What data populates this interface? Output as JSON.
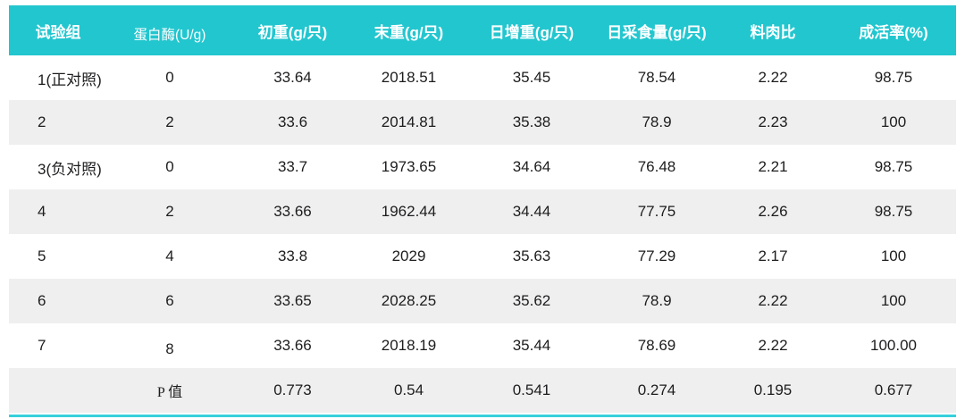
{
  "table": {
    "headers": [
      "试验组",
      "蛋白酶(U/g)",
      "初重(g/只)",
      "末重(g/只)",
      "日增重(g/只)",
      "日采食量(g/只)",
      "料肉比",
      "成活率(%)"
    ],
    "rows": [
      [
        "1(正对照)",
        "0",
        "33.64",
        "2018.51",
        "35.45",
        "78.54",
        "2.22",
        "98.75"
      ],
      [
        "2",
        "2",
        "33.6",
        "2014.81",
        "35.38",
        "78.9",
        "2.23",
        "100"
      ],
      [
        "3(负对照)",
        "0",
        "33.7",
        "1973.65",
        "34.64",
        "76.48",
        "2.21",
        "98.75"
      ],
      [
        "4",
        "2",
        "33.66",
        "1962.44",
        "34.44",
        "77.75",
        "2.26",
        "98.75"
      ],
      [
        "5",
        "4",
        "33.8",
        "2029",
        "35.63",
        "77.29",
        "2.17",
        "100"
      ],
      [
        "6",
        "6",
        "33.65",
        "2028.25",
        "35.62",
        "78.9",
        "2.22",
        "100"
      ],
      [
        "7",
        "8",
        "33.66",
        "2018.19",
        "35.44",
        "78.69",
        "2.22",
        "100.00"
      ],
      [
        "",
        "P 值",
        "0.773",
        "0.54",
        "0.541",
        "0.274",
        "0.195",
        "0.677"
      ]
    ],
    "colors": {
      "header_bg": "#22c6cf",
      "header_text": "#ffffff",
      "stripe_bg": "#efefef",
      "body_text": "#1d1d1f",
      "accent_line": "#35d0dc"
    }
  },
  "chart_data": {
    "type": "table",
    "title": "",
    "columns": [
      "试验组",
      "蛋白酶(U/g)",
      "初重(g/只)",
      "末重(g/只)",
      "日增重(g/只)",
      "日采食量(g/只)",
      "料肉比",
      "成活率(%)"
    ],
    "rows": [
      [
        "1(正对照)",
        0,
        33.64,
        2018.51,
        35.45,
        78.54,
        2.22,
        98.75
      ],
      [
        "2",
        2,
        33.6,
        2014.81,
        35.38,
        78.9,
        2.23,
        100
      ],
      [
        "3(负对照)",
        0,
        33.7,
        1973.65,
        34.64,
        76.48,
        2.21,
        98.75
      ],
      [
        "4",
        2,
        33.66,
        1962.44,
        34.44,
        77.75,
        2.26,
        98.75
      ],
      [
        "5",
        4,
        33.8,
        2029,
        35.63,
        77.29,
        2.17,
        100
      ],
      [
        "6",
        6,
        33.65,
        2028.25,
        35.62,
        78.9,
        2.22,
        100
      ],
      [
        "7",
        8,
        33.66,
        2018.19,
        35.44,
        78.69,
        2.22,
        100.0
      ],
      [
        "P值",
        null,
        0.773,
        0.54,
        0.541,
        0.274,
        0.195,
        0.677
      ]
    ],
    "layout_hints": {
      "zebra_striping": true,
      "header_background": "#22c6cf",
      "bottom_accent_line": "#35d0dc",
      "p_value_row_last": true
    }
  }
}
